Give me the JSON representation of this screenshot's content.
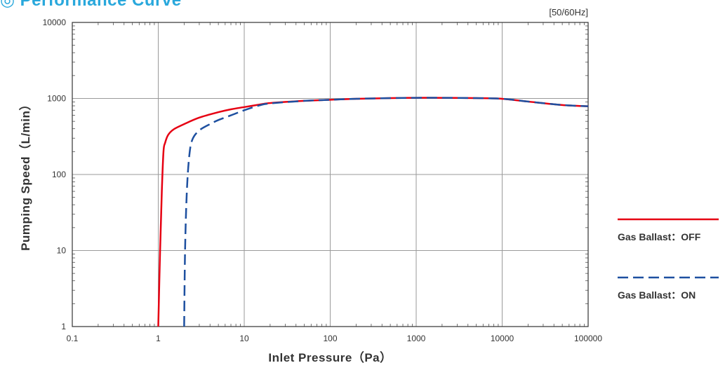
{
  "title": "◎ Performance Curve",
  "chart_data": {
    "type": "line",
    "title": "◎ Performance Curve",
    "xlabel": "Inlet Pressure（Pa）",
    "ylabel": "Pumping Speed（L/min）",
    "rate_note": "[50/60Hz]",
    "xscale": "log",
    "yscale": "log",
    "xlim": [
      0.1,
      100000
    ],
    "ylim": [
      1,
      10000
    ],
    "x_ticks": [
      "0.1",
      "1",
      "10",
      "100",
      "1000",
      "10000",
      "100000"
    ],
    "y_ticks": [
      "1",
      "10",
      "100",
      "1000",
      "10000"
    ],
    "grid": true,
    "legend_position": "right",
    "series": [
      {
        "name": "Gas Ballast：OFF",
        "color": "#e60012",
        "style": "solid",
        "x": [
          1.0,
          1.05,
          1.1,
          1.15,
          1.2,
          1.3,
          1.5,
          2,
          3,
          5,
          7,
          10,
          15,
          20,
          50,
          100,
          200,
          500,
          1000,
          2000,
          5000,
          10000,
          20000,
          50000,
          100000
        ],
        "y": [
          1,
          10,
          60,
          200,
          260,
          330,
          390,
          460,
          560,
          660,
          720,
          770,
          830,
          870,
          930,
          960,
          990,
          1010,
          1020,
          1020,
          1010,
          990,
          910,
          820,
          790
        ]
      },
      {
        "name": "Gas Ballast：ON",
        "color": "#1e50a0",
        "style": "dashed",
        "x": [
          2.0,
          2.05,
          2.15,
          2.3,
          2.5,
          3,
          4,
          5,
          7,
          10,
          15,
          20,
          50,
          100,
          200,
          500,
          1000,
          2000,
          5000,
          10000,
          20000,
          50000,
          100000
        ],
        "y": [
          1,
          10,
          60,
          180,
          290,
          380,
          460,
          520,
          600,
          700,
          810,
          860,
          930,
          960,
          990,
          1010,
          1020,
          1020,
          1010,
          990,
          910,
          820,
          790
        ]
      }
    ]
  }
}
